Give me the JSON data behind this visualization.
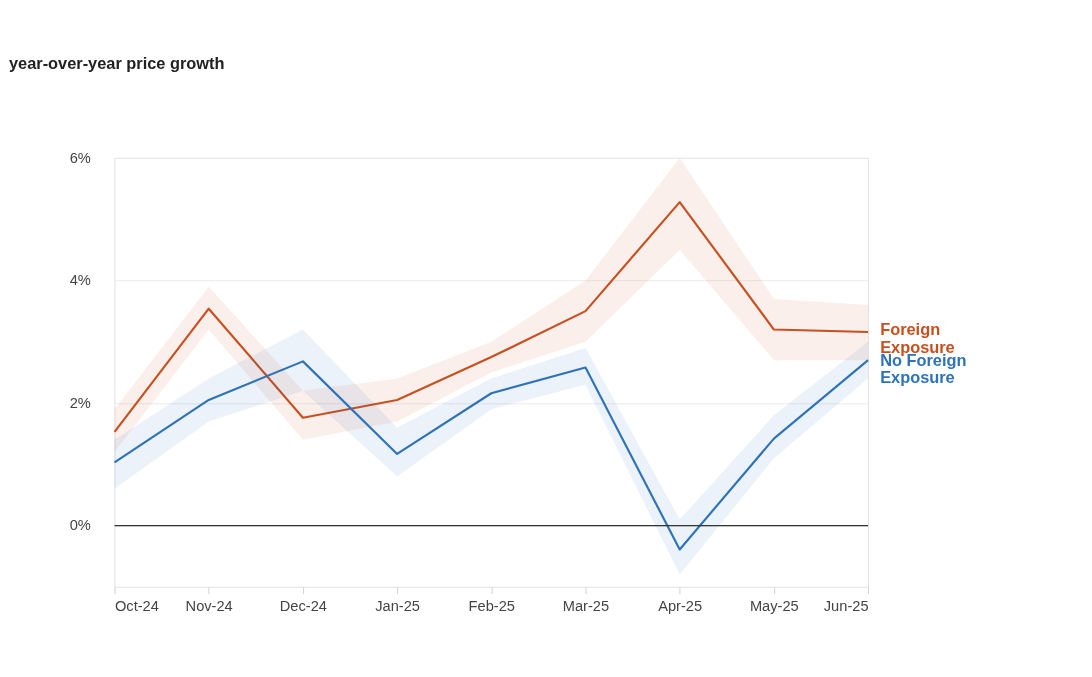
{
  "chart_data": {
    "type": "line",
    "title": "year-over-year price growth",
    "categories": [
      "Oct-24",
      "Nov-24",
      "Dec-24",
      "Jan-25",
      "Feb-25",
      "Mar-25",
      "Apr-25",
      "May-25",
      "Jun-25"
    ],
    "series": [
      {
        "name": "Foreign Exposure",
        "color": "#c8501f",
        "values": [
          1.53,
          3.54,
          1.76,
          2.05,
          2.75,
          3.5,
          5.28,
          3.2,
          3.16
        ],
        "lower": [
          1.2,
          3.2,
          1.4,
          1.7,
          2.5,
          3.0,
          4.5,
          2.7,
          2.7
        ],
        "upper": [
          1.9,
          3.9,
          2.2,
          2.4,
          3.0,
          4.0,
          6.0,
          3.7,
          3.6
        ]
      },
      {
        "name": "No Foreign Exposure",
        "color": "#2e73b8",
        "values": [
          1.03,
          2.05,
          2.68,
          1.17,
          2.16,
          2.58,
          -0.39,
          1.42,
          2.7
        ],
        "lower": [
          0.6,
          1.7,
          2.2,
          0.8,
          1.9,
          2.3,
          -0.8,
          1.1,
          2.4
        ],
        "upper": [
          1.4,
          2.4,
          3.2,
          1.6,
          2.4,
          2.9,
          0.1,
          1.8,
          3.0
        ]
      }
    ],
    "ylim": [
      -1,
      6
    ],
    "yticks": [
      {
        "value": 0,
        "label": "0%"
      },
      {
        "value": 2,
        "label": "2%"
      },
      {
        "value": 4,
        "label": "4%"
      },
      {
        "value": 6,
        "label": "6%"
      }
    ],
    "grid": "y",
    "ref_lines": [
      {
        "axis": "y",
        "value": 0,
        "color": "#333333"
      }
    ]
  }
}
